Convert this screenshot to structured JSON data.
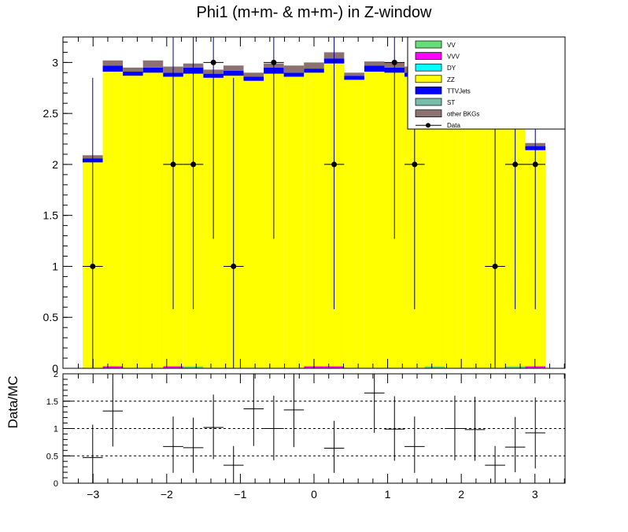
{
  "chart_data": {
    "type": "bar",
    "title": "Phi1 (m+m- & m+m-) in Z-window",
    "xlabel": "",
    "ylabel": "",
    "ratio_ylabel": "Data/MC",
    "xlim": [
      -3.14159,
      3.14159
    ],
    "ylim": [
      0,
      3.25
    ],
    "ratio_ylim": [
      0,
      2
    ],
    "yticks": [
      "0",
      "0.5",
      "1",
      "1.5",
      "2",
      "2.5",
      "3"
    ],
    "ratio_yticks": [
      "0",
      "0.5",
      "1",
      "1.5",
      "2"
    ],
    "xticks": [
      "−3",
      "−2",
      "−1",
      "0",
      "1",
      "2",
      "3"
    ],
    "bins": 23,
    "stack_series": [
      {
        "name": "VV",
        "color": "#66dd77",
        "values": [
          0,
          0,
          0,
          0,
          0,
          0.02,
          0,
          0,
          0,
          0,
          0,
          0,
          0,
          0,
          0,
          0,
          0,
          0.02,
          0,
          0,
          0,
          0.02,
          0
        ]
      },
      {
        "name": "VVV",
        "color": "#ff00ff",
        "values": [
          0,
          0.02,
          0,
          0,
          0.02,
          0,
          0,
          0,
          0,
          0,
          0,
          0.02,
          0.02,
          0,
          0,
          0,
          0,
          0,
          0,
          0,
          0,
          0,
          0.02
        ]
      },
      {
        "name": "DY",
        "color": "#00ffff",
        "values": [
          0,
          0,
          0,
          0,
          0,
          0,
          0,
          0,
          0,
          0,
          0,
          0,
          0,
          0,
          0,
          0,
          0,
          0,
          0,
          0,
          0,
          0,
          0
        ]
      },
      {
        "name": "ZZ",
        "color": "#ffff00",
        "values": [
          2.02,
          2.89,
          2.87,
          2.9,
          2.84,
          2.87,
          2.85,
          2.87,
          2.82,
          2.89,
          2.86,
          2.88,
          2.97,
          2.83,
          2.91,
          2.9,
          2.86,
          2.89,
          2.88,
          2.86,
          2.87,
          2.82,
          2.12
        ]
      },
      {
        "name": "TTVJets",
        "color": "#0000ff",
        "values": [
          0.04,
          0.06,
          0.04,
          0.05,
          0.04,
          0.06,
          0.04,
          0.05,
          0.04,
          0.06,
          0.04,
          0.04,
          0.05,
          0.04,
          0.06,
          0.05,
          0.04,
          0.05,
          0.04,
          0.05,
          0.05,
          0.04,
          0.04
        ]
      },
      {
        "name": "ST",
        "color": "#77bbaa",
        "values": [
          0,
          0,
          0,
          0,
          0,
          0,
          0,
          0,
          0,
          0,
          0,
          0,
          0,
          0,
          0,
          0,
          0,
          0,
          0,
          0,
          0,
          0,
          0
        ]
      },
      {
        "name": "other BKGs",
        "color": "#8b7270",
        "values": [
          0.03,
          0.05,
          0.04,
          0.07,
          0.06,
          0.04,
          0.04,
          0.05,
          0.04,
          0.04,
          0.07,
          0.06,
          0.06,
          0.03,
          0.04,
          0.05,
          0.06,
          0.05,
          0.04,
          0.05,
          0.04,
          0.05,
          0.03
        ]
      }
    ],
    "data_series": {
      "name": "Data",
      "values": [
        1,
        null,
        null,
        null,
        2,
        2,
        3,
        1,
        null,
        3,
        null,
        null,
        2,
        null,
        null,
        3,
        2,
        null,
        null,
        null,
        1,
        2,
        2
      ],
      "err_low": [
        1,
        null,
        null,
        null,
        1.42,
        1.42,
        1.73,
        1,
        null,
        1.73,
        null,
        null,
        1.42,
        null,
        null,
        1.73,
        1.42,
        null,
        null,
        null,
        1,
        1.42,
        1.42
      ],
      "err_high": [
        1.85,
        null,
        null,
        null,
        2.3,
        2.3,
        2.4,
        1.85,
        null,
        2.4,
        null,
        null,
        2.3,
        null,
        null,
        2.4,
        2.3,
        null,
        null,
        null,
        1.85,
        2.3,
        2.3
      ]
    },
    "ratio_series": {
      "name": "Data/MC",
      "values": [
        0.47,
        1.32,
        null,
        null,
        0.67,
        0.65,
        1.02,
        0.33,
        1.36,
        1.0,
        1.34,
        null,
        0.64,
        null,
        1.65,
        0.99,
        0.67,
        null,
        1.0,
        0.98,
        0.33,
        0.66,
        0.92
      ],
      "err_low": [
        0.47,
        0.65,
        null,
        null,
        0.48,
        0.46,
        0.58,
        0.33,
        0.68,
        0.58,
        0.68,
        null,
        0.45,
        null,
        0.73,
        0.58,
        0.48,
        null,
        0.58,
        0.57,
        0.33,
        0.46,
        0.65
      ],
      "err_high": [
        0.6,
        0.7,
        null,
        null,
        0.55,
        0.55,
        0.6,
        0.35,
        0.7,
        0.6,
        0.7,
        null,
        0.5,
        null,
        0.75,
        0.6,
        0.55,
        null,
        0.6,
        0.6,
        0.35,
        0.55,
        0.65
      ]
    },
    "ratio_reference_lines": [
      0.5,
      1,
      1.5
    ],
    "legend_position": "top-right",
    "legend_entries": [
      "VV",
      "VVV",
      "DY",
      "ZZ",
      "TTVJets",
      "ST",
      "other BKGs",
      "Data"
    ]
  }
}
